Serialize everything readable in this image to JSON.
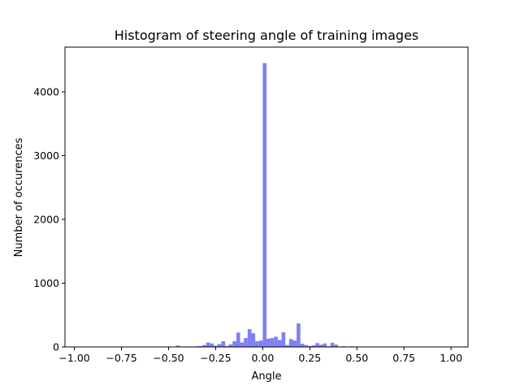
{
  "chart_data": {
    "type": "bar",
    "title": "Histogram of steering angle of training images",
    "xlabel": "Angle",
    "ylabel": "Number of occurences",
    "xlim": [
      -1.05,
      1.09
    ],
    "ylim": [
      0,
      4700
    ],
    "x_ticks": [
      -1.0,
      -0.75,
      -0.5,
      -0.25,
      0.0,
      0.25,
      0.5,
      0.75,
      1.0
    ],
    "x_tick_labels": [
      "−1.00",
      "−0.75",
      "−0.50",
      "−0.25",
      "0.00",
      "0.25",
      "0.50",
      "0.75",
      "1.00"
    ],
    "y_ticks": [
      0,
      1000,
      2000,
      3000,
      4000
    ],
    "y_tick_labels": [
      "0",
      "1000",
      "2000",
      "3000",
      "4000"
    ],
    "bar_color": "#8080f4",
    "bin_width": 0.02,
    "bins": [
      {
        "x": -0.51,
        "y": 6
      },
      {
        "x": -0.49,
        "y": 3
      },
      {
        "x": -0.45,
        "y": 22
      },
      {
        "x": -0.41,
        "y": 4
      },
      {
        "x": -0.39,
        "y": 8
      },
      {
        "x": -0.37,
        "y": 6
      },
      {
        "x": -0.35,
        "y": 10
      },
      {
        "x": -0.33,
        "y": 14
      },
      {
        "x": -0.31,
        "y": 30
      },
      {
        "x": -0.29,
        "y": 70
      },
      {
        "x": -0.27,
        "y": 55
      },
      {
        "x": -0.25,
        "y": 20
      },
      {
        "x": -0.23,
        "y": 45
      },
      {
        "x": -0.21,
        "y": 90
      },
      {
        "x": -0.19,
        "y": 15
      },
      {
        "x": -0.17,
        "y": 40
      },
      {
        "x": -0.15,
        "y": 90
      },
      {
        "x": -0.13,
        "y": 225
      },
      {
        "x": -0.11,
        "y": 70
      },
      {
        "x": -0.09,
        "y": 140
      },
      {
        "x": -0.07,
        "y": 280
      },
      {
        "x": -0.05,
        "y": 215
      },
      {
        "x": -0.03,
        "y": 90
      },
      {
        "x": -0.01,
        "y": 100
      },
      {
        "x": 0.01,
        "y": 4450
      },
      {
        "x": 0.03,
        "y": 130
      },
      {
        "x": 0.05,
        "y": 140
      },
      {
        "x": 0.07,
        "y": 160
      },
      {
        "x": 0.09,
        "y": 110
      },
      {
        "x": 0.11,
        "y": 230
      },
      {
        "x": 0.13,
        "y": 30
      },
      {
        "x": 0.15,
        "y": 125
      },
      {
        "x": 0.17,
        "y": 100
      },
      {
        "x": 0.19,
        "y": 370
      },
      {
        "x": 0.21,
        "y": 50
      },
      {
        "x": 0.23,
        "y": 30
      },
      {
        "x": 0.25,
        "y": 15
      },
      {
        "x": 0.27,
        "y": 25
      },
      {
        "x": 0.29,
        "y": 60
      },
      {
        "x": 0.31,
        "y": 35
      },
      {
        "x": 0.33,
        "y": 55
      },
      {
        "x": 0.35,
        "y": 10
      },
      {
        "x": 0.37,
        "y": 65
      },
      {
        "x": 0.39,
        "y": 35
      },
      {
        "x": 0.41,
        "y": 5
      },
      {
        "x": 0.43,
        "y": 10
      },
      {
        "x": 0.47,
        "y": 10
      },
      {
        "x": 0.49,
        "y": 5
      }
    ]
  }
}
